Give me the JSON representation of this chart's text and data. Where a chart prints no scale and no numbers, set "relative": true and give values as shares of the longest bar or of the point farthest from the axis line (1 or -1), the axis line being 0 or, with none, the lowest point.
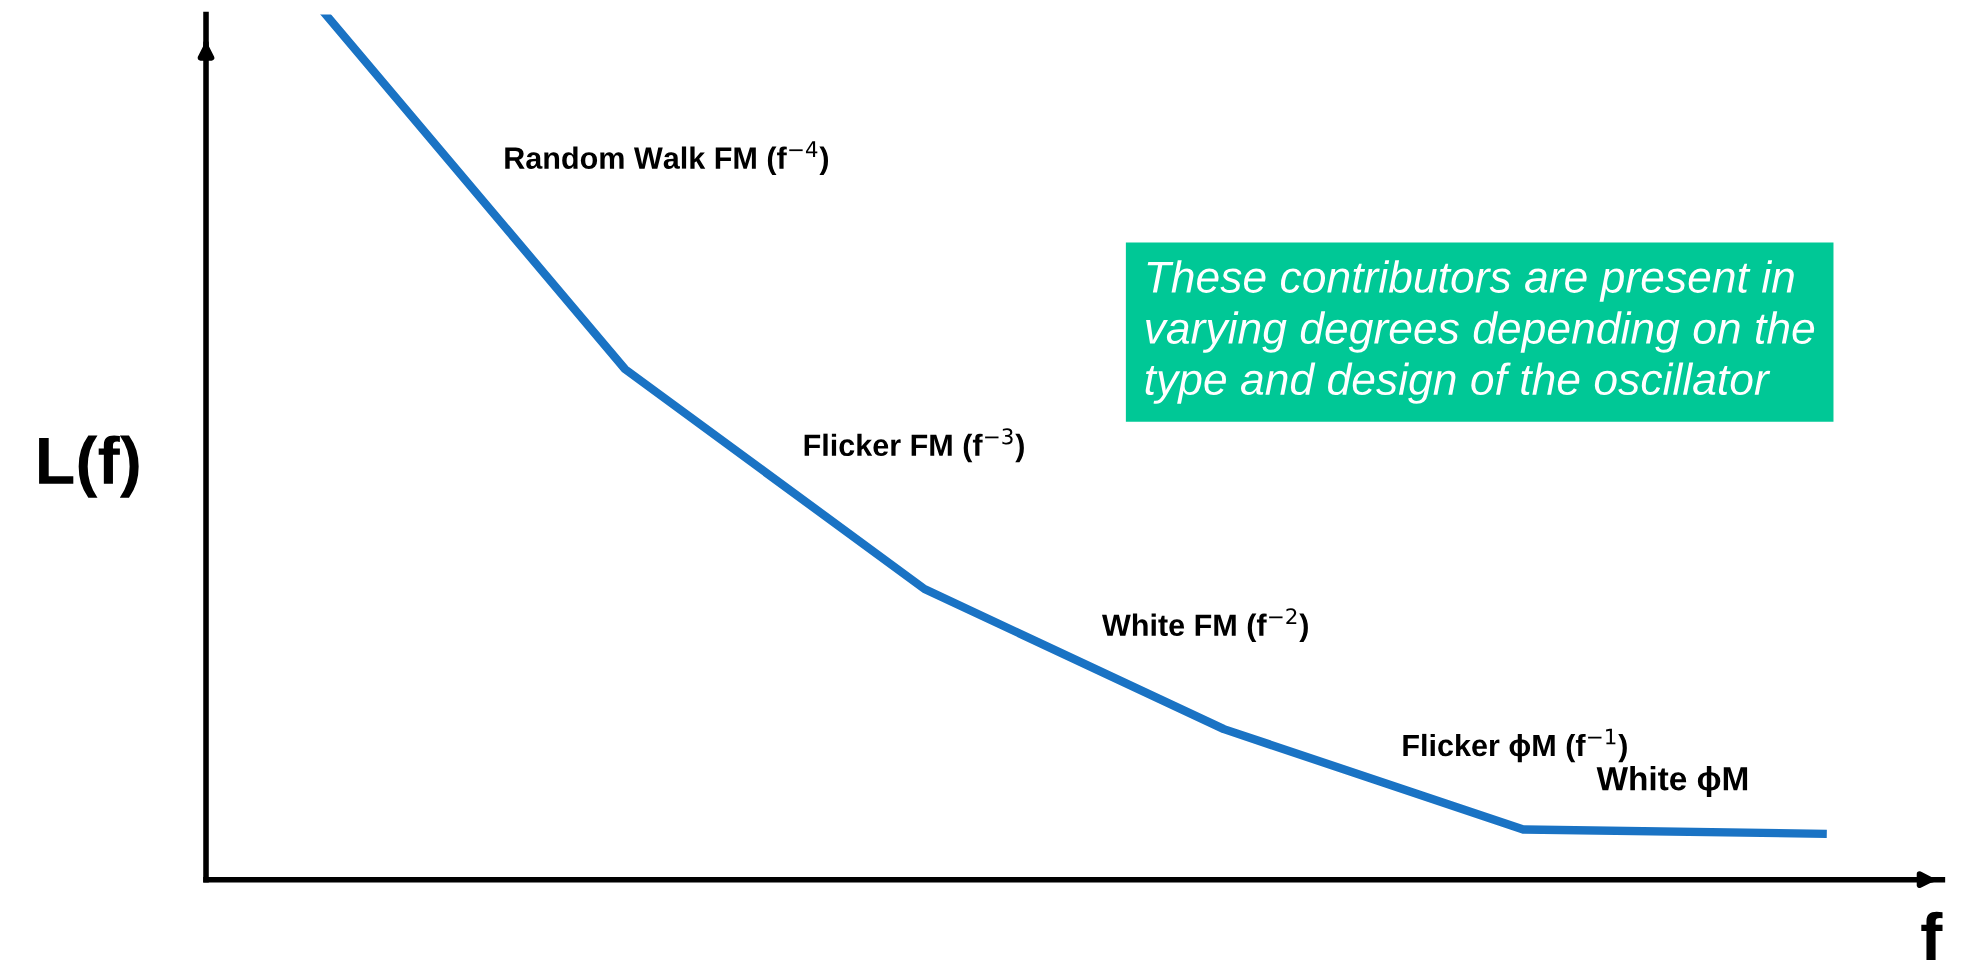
{
  "chart_data": {
    "type": "line",
    "relative": true,
    "ylabel": "L(f)",
    "xlabel": "f",
    "categories": [
      null,
      null,
      null,
      null,
      null,
      null
    ],
    "series": [
      {
        "color": "#1a73c4",
        "values": [
          1,
          0.59,
          0.336,
          0.174,
          0.058,
          0.053
        ]
      }
    ],
    "grid": false,
    "legend": false,
    "marker": "none",
    "line_style": "solid",
    "annotations": [
      "Random Walk FM (f$^{−4}$)",
      "Flicker FM (f$^{−3}$)",
      "White FM (f$^{−2}$)",
      "Flicker ϕM (f$^{−1}$)",
      "White ϕM",
      "These contributors are present in\nvarying degrees depending on the\ntype and design of the oscillator"
    ]
  }
}
